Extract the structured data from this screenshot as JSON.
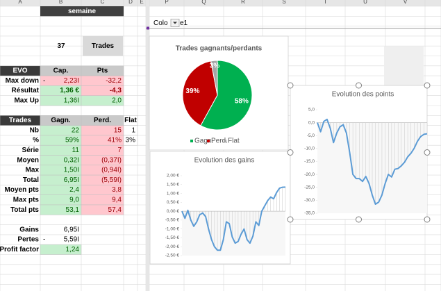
{
  "sheet": {
    "columns": [
      "A",
      "B",
      "C",
      "D",
      "E",
      "P",
      "Q",
      "R",
      "S",
      "T",
      "U",
      "V"
    ],
    "title": "semaine",
    "field_button": {
      "left": "Colo",
      "right": "e1"
    },
    "count": "37",
    "count_label": "Trades",
    "evo": {
      "header": [
        "EVO",
        "Cap.",
        "Pts"
      ],
      "rows": [
        {
          "label": "Max down",
          "prefix": "-",
          "cells": [
            "2,23I",
            "-32,2"
          ]
        },
        {
          "label": "Résultat",
          "cells": [
            "1,36 €",
            "-4,3"
          ]
        },
        {
          "label": "Max Up",
          "cells": [
            "1,36I",
            "2,0"
          ]
        }
      ]
    },
    "trades": {
      "header": [
        "Trades",
        "Gagn.",
        "Perd.",
        "Flat"
      ],
      "rows": [
        {
          "label": "Nb",
          "cells": [
            "22",
            "15",
            "1"
          ]
        },
        {
          "label": "%",
          "cells": [
            "59%",
            "41%",
            "3%"
          ]
        },
        {
          "label": "Série",
          "cells": [
            "11",
            "7"
          ]
        },
        {
          "label": "Moyen",
          "cells": [
            "0,32I",
            "(0,37I)"
          ]
        },
        {
          "label": "Max",
          "cells": [
            "1,50I",
            "(0,94I)"
          ]
        },
        {
          "label": "Total",
          "cells": [
            "6,95I",
            "(5,59I)"
          ]
        },
        {
          "label": "Moyen pts",
          "cells": [
            "2,4",
            "3,8"
          ]
        },
        {
          "label": "Max pts",
          "cells": [
            "9,0",
            "9,4"
          ]
        },
        {
          "label": "Total pts",
          "cells": [
            "53,1",
            "57,4"
          ]
        }
      ]
    },
    "summary": {
      "rows": [
        {
          "label": "Gains",
          "cells": [
            "6,95I"
          ]
        },
        {
          "label": "Pertes",
          "prefix": "-",
          "cells": [
            "5,59I"
          ]
        },
        {
          "label": "Profit factor",
          "cells": [
            "1,24"
          ]
        }
      ]
    }
  },
  "chart_data": [
    {
      "type": "pie",
      "title": "Trades gagnants/perdants",
      "categories": [
        "Gagn.",
        "Perd.",
        "Flat"
      ],
      "values": [
        58,
        39,
        3
      ],
      "value_labels": [
        "58%",
        "39%",
        "3%"
      ],
      "colors": [
        "#00b050",
        "#c00000",
        "#a6a6a6"
      ],
      "legend": "bottom"
    },
    {
      "type": "line",
      "title": "Evolution des gains",
      "color": "#5b9bd5",
      "values": [
        0,
        -0.4,
        0.05,
        -0.5,
        -0.85,
        -0.6,
        -0.2,
        -0.1,
        -0.3,
        -1.0,
        -1.6,
        -2.0,
        -2.2,
        -2.2,
        -1.6,
        -0.6,
        -0.7,
        -1.45,
        -1.8,
        -1.7,
        -1.3,
        -1.0,
        -1.6,
        -1.8,
        -1.4,
        -0.6,
        -0.8,
        0,
        0.3,
        0.6,
        0.8,
        0.7,
        1.05,
        1.3,
        1.35,
        1.36
      ],
      "ylim": [
        -2.5,
        2.0
      ],
      "yticks": [
        {
          "value": 2.0,
          "label": "2,00 €"
        },
        {
          "value": 1.5,
          "label": "1,50 €"
        },
        {
          "value": 1.0,
          "label": "1,00 €"
        },
        {
          "value": 0.5,
          "label": "0,50 €"
        },
        {
          "value": 0,
          "label": "0,00 €"
        },
        {
          "value": -0.5,
          "label": "-0,50 €"
        },
        {
          "value": -1.0,
          "label": "-1,00 €"
        },
        {
          "value": -1.5,
          "label": "-1,50 €"
        },
        {
          "value": -2.0,
          "label": "-2,00 €"
        },
        {
          "value": -2.5,
          "label": "-2,50 €"
        }
      ]
    },
    {
      "type": "line",
      "title": "Evolution des points",
      "color": "#5b9bd5",
      "values": [
        0,
        -3.5,
        0.5,
        1.3,
        -2.2,
        -7.7,
        -4,
        -1.6,
        -0.8,
        -4,
        -11.5,
        -20,
        -21.6,
        -21.6,
        -22.7,
        -20.8,
        -23.5,
        -28,
        -31.5,
        -30.7,
        -28,
        -23.5,
        -20,
        -21,
        -18,
        -17.7,
        -16.7,
        -15.3,
        -13.2,
        -11.8,
        -9.9,
        -7.2,
        -5.4,
        -4.5,
        -4.3
      ],
      "ylim": [
        -35,
        5
      ],
      "yticks": [
        {
          "value": 5,
          "label": "5,0"
        },
        {
          "value": 0,
          "label": "0,0"
        },
        {
          "value": -5,
          "label": "-5,0"
        },
        {
          "value": -10,
          "label": "-10,0"
        },
        {
          "value": -15,
          "label": "-15,0"
        },
        {
          "value": -20,
          "label": "-20,0"
        },
        {
          "value": -25,
          "label": "-25,0"
        },
        {
          "value": -30,
          "label": "-30,0"
        },
        {
          "value": -35,
          "label": "-35,0"
        }
      ]
    }
  ]
}
